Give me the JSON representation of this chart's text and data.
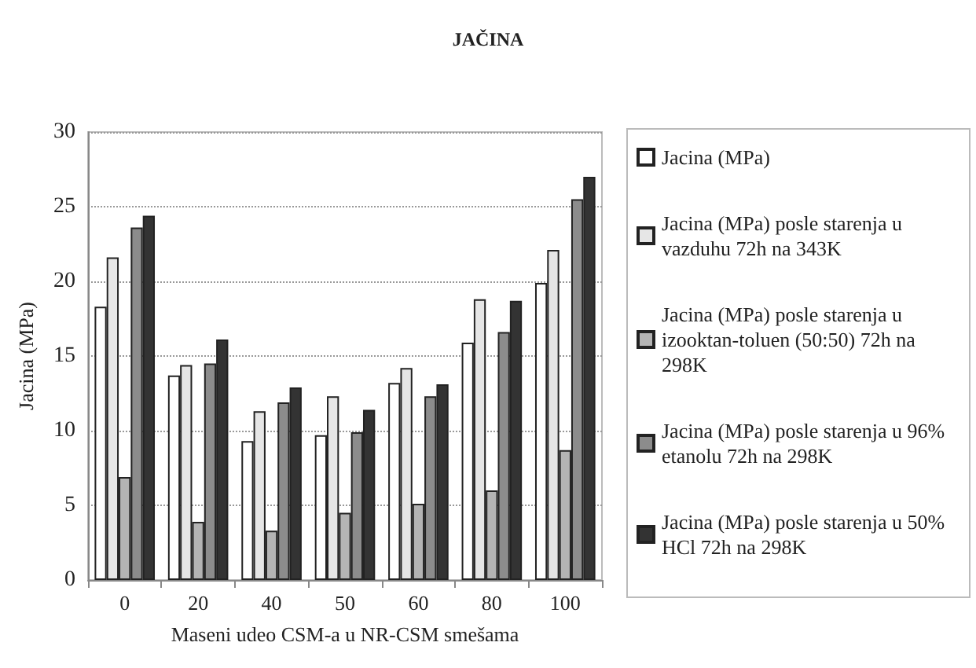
{
  "chart_data": {
    "type": "bar",
    "title": "JAČINA",
    "xlabel": "Maseni udeo CSM-a u NR-CSM smešama",
    "ylabel": "Jacina (MPa)",
    "categories": [
      "0",
      "20",
      "40",
      "50",
      "60",
      "80",
      "100"
    ],
    "series": [
      {
        "name": "Jacina (MPa)",
        "color": "#ffffff",
        "values": [
          18.3,
          13.7,
          9.3,
          9.7,
          13.2,
          15.9,
          19.9
        ]
      },
      {
        "name": "Jacina (MPa) posle starenja u vazduhu 72h na 343K",
        "color": "#e6e6e6",
        "values": [
          21.6,
          14.4,
          11.3,
          12.3,
          14.2,
          18.8,
          22.1
        ]
      },
      {
        "name": "Jacina (MPa) posle starenja u izooktan-toluen (50:50) 72h na 298K",
        "color": "#b4b4b4",
        "values": [
          6.9,
          3.9,
          3.3,
          4.5,
          5.1,
          6.0,
          8.7
        ]
      },
      {
        "name": "Jacina (MPa) posle starenja u 96% etanolu 72h na 298K",
        "color": "#8c8c8c",
        "values": [
          23.6,
          14.5,
          11.9,
          9.9,
          12.3,
          16.6,
          25.5
        ]
      },
      {
        "name": "Jacina (MPa) posle starenja u 50% HCl 72h na 298K",
        "color": "#333333",
        "values": [
          24.4,
          16.1,
          12.9,
          11.4,
          13.1,
          18.7,
          27.0
        ]
      }
    ],
    "ylim": [
      0,
      30
    ],
    "yticks": [
      0,
      5,
      10,
      15,
      20,
      25,
      30
    ],
    "grid": "y",
    "legend": "right"
  }
}
